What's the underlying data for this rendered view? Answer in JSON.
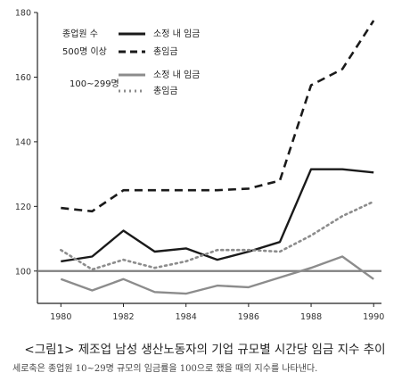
{
  "chart_data": {
    "type": "line",
    "title": "<그림1> 제조업 남성 생산노동자의 기업 규모별 시간당 임금 지수 추이",
    "note": "세로축은 종업원 10~29명 규모의 임금률을 100으로 했을 때의 지수를 나타낸다.",
    "xlabel": "",
    "ylabel": "",
    "x": [
      1980,
      1981,
      1982,
      1983,
      1984,
      1985,
      1986,
      1987,
      1988,
      1989,
      1990
    ],
    "xlim": [
      1979.25,
      1990.25
    ],
    "ylim": [
      90,
      180
    ],
    "xticks": [
      1980,
      1982,
      1984,
      1986,
      1988,
      1990
    ],
    "yticks": [
      100,
      120,
      140,
      160,
      180
    ],
    "reference_line": 100,
    "grid": false,
    "legend": {
      "placement": "top-left",
      "groups": [
        {
          "label": "종업원 수",
          "sublabel": "500명 이상",
          "entries": [
            "소정 내 임금",
            "총임금"
          ]
        },
        {
          "label": "100~299명",
          "sublabel": "",
          "entries": [
            "소정 내 임금",
            "총임금"
          ]
        }
      ]
    },
    "series": [
      {
        "name": "소정 내 임금",
        "group": "500명 이상",
        "color": "#1a1a1a",
        "style": "solid",
        "values": [
          103,
          104.5,
          112.5,
          106,
          107,
          103.5,
          106,
          109,
          131.5,
          131.5,
          130.5
        ]
      },
      {
        "name": "총임금",
        "group": "500명 이상",
        "color": "#1a1a1a",
        "style": "dashed",
        "values": [
          119.5,
          118.5,
          125,
          125,
          125,
          125,
          125.5,
          128,
          157.5,
          162.5,
          177.5
        ]
      },
      {
        "name": "소정 내 임금",
        "group": "100~299명",
        "color": "#8c8c8c",
        "style": "solid",
        "values": [
          97.5,
          94,
          97.5,
          93.5,
          93,
          95.5,
          95,
          98,
          101,
          104.5,
          97.5
        ]
      },
      {
        "name": "총임금",
        "group": "100~299명",
        "color": "#8c8c8c",
        "style": "dotted",
        "values": [
          106.5,
          100.5,
          103.5,
          101,
          103,
          106.5,
          106.5,
          106,
          111,
          117,
          121.5
        ]
      }
    ]
  }
}
